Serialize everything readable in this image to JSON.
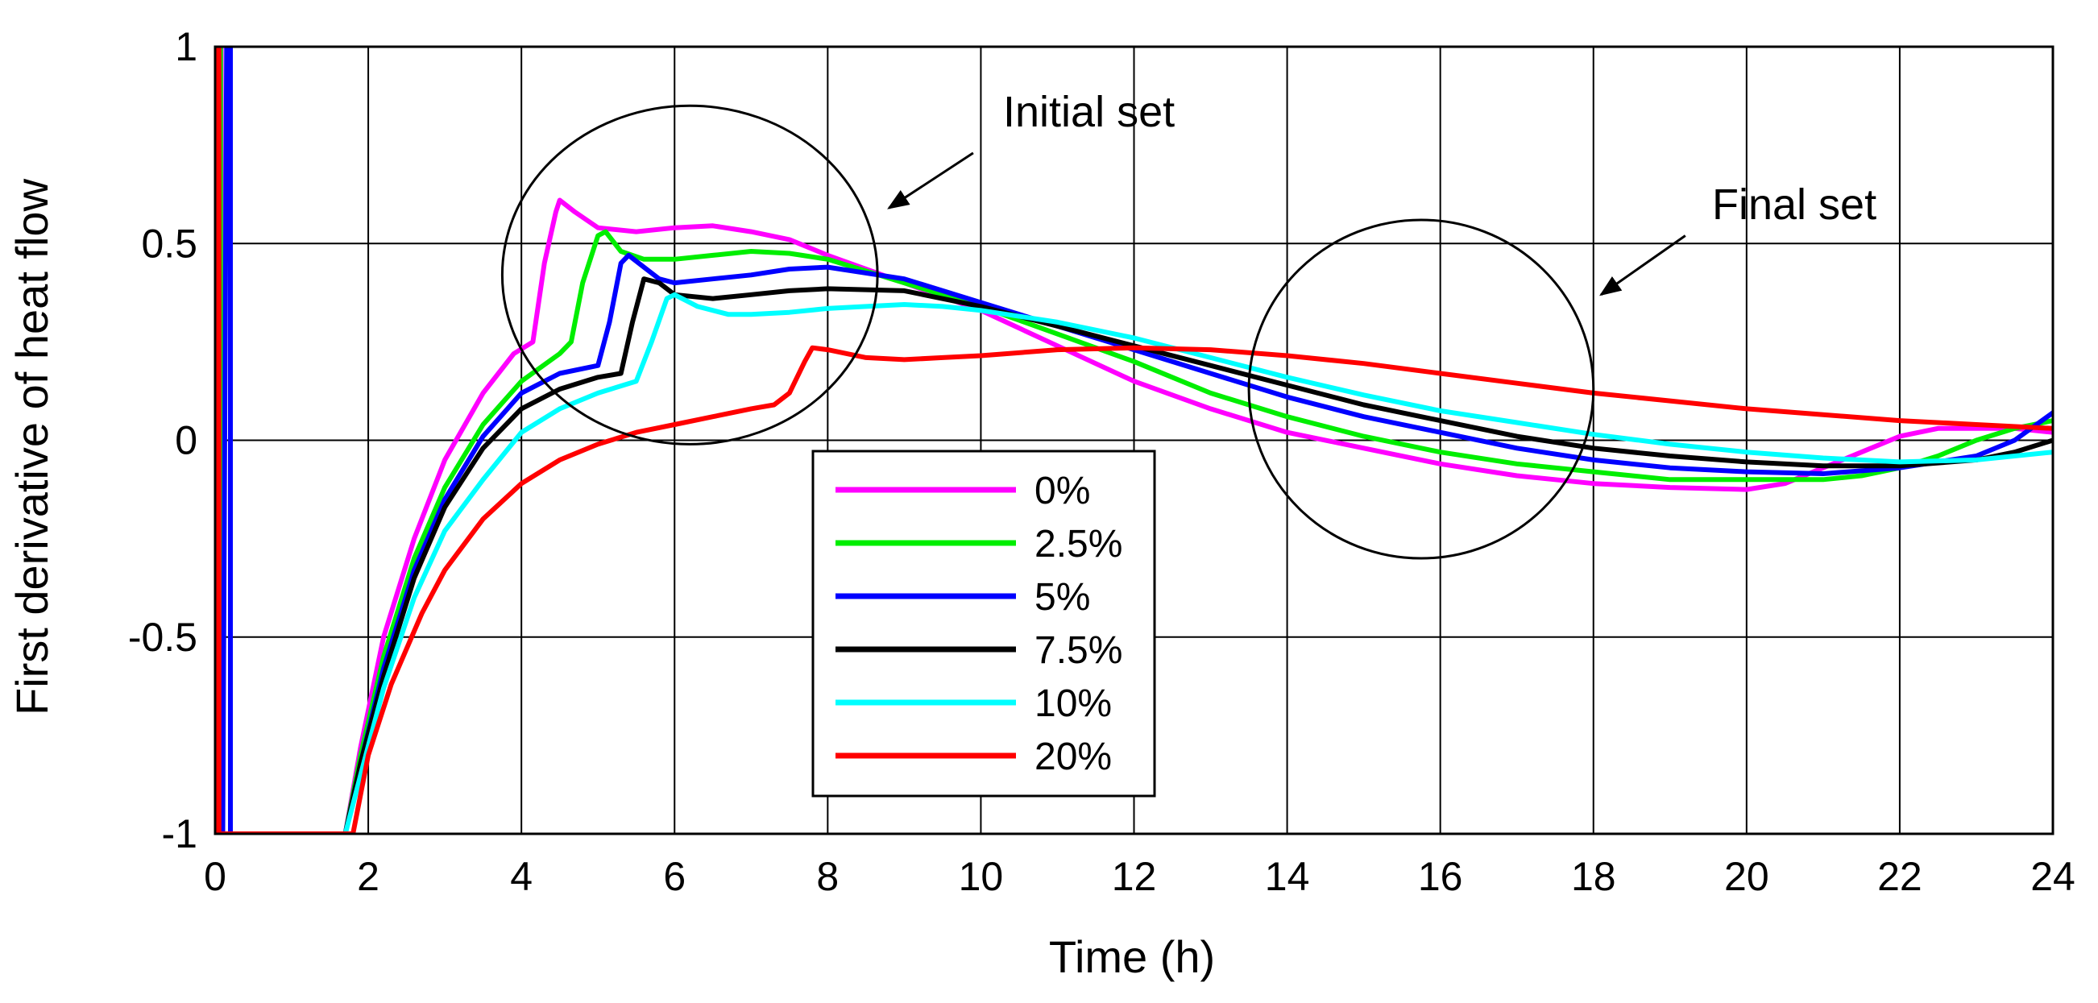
{
  "chart_data": {
    "type": "line",
    "title": "",
    "xlabel": "Time (h)",
    "ylabel": "First derivative of heat flow",
    "xlim": [
      0,
      24
    ],
    "ylim": [
      -1,
      1
    ],
    "x_ticks": [
      0,
      2,
      4,
      6,
      8,
      10,
      12,
      14,
      16,
      18,
      20,
      22,
      24
    ],
    "y_ticks": [
      -1,
      -0.5,
      0,
      0.5,
      1
    ],
    "x_tick_labels": [
      "0",
      "2",
      "4",
      "6",
      "8",
      "10",
      "12",
      "14",
      "16",
      "18",
      "20",
      "22",
      "24"
    ],
    "y_tick_labels": [
      "-1",
      "-0.5",
      "0",
      "0.5",
      "1"
    ],
    "grid": true,
    "legend_position": "bottom-center",
    "series": [
      {
        "name": "0%",
        "color": "#ff00ff",
        "points": [
          [
            0.0,
            -1
          ],
          [
            0.0,
            1
          ],
          [
            0.08,
            1
          ],
          [
            0.08,
            -1
          ],
          [
            1.7,
            -1
          ],
          [
            1.9,
            -0.78
          ],
          [
            2.2,
            -0.5
          ],
          [
            2.6,
            -0.25
          ],
          [
            3.0,
            -0.05
          ],
          [
            3.5,
            0.12
          ],
          [
            3.9,
            0.22
          ],
          [
            4.15,
            0.25
          ],
          [
            4.3,
            0.45
          ],
          [
            4.45,
            0.58
          ],
          [
            4.5,
            0.61
          ],
          [
            4.7,
            0.58
          ],
          [
            5.0,
            0.54
          ],
          [
            5.5,
            0.53
          ],
          [
            6.0,
            0.54
          ],
          [
            6.5,
            0.545
          ],
          [
            7.0,
            0.53
          ],
          [
            7.5,
            0.51
          ],
          [
            8.0,
            0.47
          ],
          [
            9.0,
            0.4
          ],
          [
            10.0,
            0.33
          ],
          [
            11.0,
            0.24
          ],
          [
            12.0,
            0.15
          ],
          [
            13.0,
            0.08
          ],
          [
            14.0,
            0.02
          ],
          [
            15.0,
            -0.02
          ],
          [
            16.0,
            -0.06
          ],
          [
            17.0,
            -0.09
          ],
          [
            18.0,
            -0.11
          ],
          [
            19.0,
            -0.12
          ],
          [
            20.0,
            -0.125
          ],
          [
            20.5,
            -0.11
          ],
          [
            21.0,
            -0.07
          ],
          [
            21.5,
            -0.03
          ],
          [
            22.0,
            0.01
          ],
          [
            22.5,
            0.03
          ],
          [
            23.0,
            0.03
          ],
          [
            23.5,
            0.03
          ],
          [
            24.0,
            0.02
          ]
        ]
      },
      {
        "name": "2.5%",
        "color": "#00ee00",
        "points": [
          [
            0.0,
            -1
          ],
          [
            0.0,
            1
          ],
          [
            0.07,
            1
          ],
          [
            0.07,
            -1
          ],
          [
            1.7,
            -1
          ],
          [
            1.9,
            -0.8
          ],
          [
            2.2,
            -0.55
          ],
          [
            2.6,
            -0.3
          ],
          [
            3.0,
            -0.12
          ],
          [
            3.5,
            0.04
          ],
          [
            4.0,
            0.15
          ],
          [
            4.5,
            0.22
          ],
          [
            4.65,
            0.25
          ],
          [
            4.8,
            0.4
          ],
          [
            5.0,
            0.52
          ],
          [
            5.1,
            0.53
          ],
          [
            5.3,
            0.48
          ],
          [
            5.6,
            0.46
          ],
          [
            6.0,
            0.46
          ],
          [
            6.5,
            0.47
          ],
          [
            7.0,
            0.48
          ],
          [
            7.5,
            0.475
          ],
          [
            8.0,
            0.46
          ],
          [
            9.0,
            0.4
          ],
          [
            10.0,
            0.34
          ],
          [
            11.0,
            0.27
          ],
          [
            12.0,
            0.2
          ],
          [
            13.0,
            0.12
          ],
          [
            14.0,
            0.06
          ],
          [
            15.0,
            0.01
          ],
          [
            16.0,
            -0.03
          ],
          [
            17.0,
            -0.06
          ],
          [
            18.0,
            -0.08
          ],
          [
            19.0,
            -0.1
          ],
          [
            20.0,
            -0.1
          ],
          [
            21.0,
            -0.1
          ],
          [
            21.5,
            -0.09
          ],
          [
            22.0,
            -0.07
          ],
          [
            22.5,
            -0.04
          ],
          [
            23.0,
            0.0
          ],
          [
            23.5,
            0.03
          ],
          [
            24.0,
            0.05
          ]
        ]
      },
      {
        "name": "5%",
        "color": "#0000ff",
        "points": [
          [
            0.0,
            -1
          ],
          [
            0.1,
            -1
          ],
          [
            0.15,
            1
          ],
          [
            0.2,
            1
          ],
          [
            0.2,
            -1
          ],
          [
            1.7,
            -1
          ],
          [
            1.9,
            -0.82
          ],
          [
            2.2,
            -0.58
          ],
          [
            2.6,
            -0.33
          ],
          [
            3.0,
            -0.15
          ],
          [
            3.5,
            0.01
          ],
          [
            4.0,
            0.12
          ],
          [
            4.5,
            0.17
          ],
          [
            5.0,
            0.19
          ],
          [
            5.15,
            0.3
          ],
          [
            5.3,
            0.45
          ],
          [
            5.4,
            0.47
          ],
          [
            5.6,
            0.44
          ],
          [
            5.8,
            0.41
          ],
          [
            6.0,
            0.4
          ],
          [
            6.5,
            0.41
          ],
          [
            7.0,
            0.42
          ],
          [
            7.5,
            0.435
          ],
          [
            8.0,
            0.44
          ],
          [
            9.0,
            0.41
          ],
          [
            10.0,
            0.35
          ],
          [
            11.0,
            0.29
          ],
          [
            12.0,
            0.23
          ],
          [
            13.0,
            0.17
          ],
          [
            14.0,
            0.11
          ],
          [
            15.0,
            0.06
          ],
          [
            16.0,
            0.02
          ],
          [
            17.0,
            -0.02
          ],
          [
            18.0,
            -0.05
          ],
          [
            19.0,
            -0.07
          ],
          [
            20.0,
            -0.08
          ],
          [
            21.0,
            -0.085
          ],
          [
            22.0,
            -0.07
          ],
          [
            23.0,
            -0.04
          ],
          [
            23.5,
            0.0
          ],
          [
            24.0,
            0.07
          ]
        ]
      },
      {
        "name": "7.5%",
        "color": "#000000",
        "points": [
          [
            0.0,
            0.0
          ],
          [
            0.0,
            -1
          ],
          [
            0.05,
            -1
          ],
          [
            1.7,
            -1
          ],
          [
            1.9,
            -0.82
          ],
          [
            2.2,
            -0.6
          ],
          [
            2.6,
            -0.35
          ],
          [
            3.0,
            -0.17
          ],
          [
            3.5,
            -0.02
          ],
          [
            4.0,
            0.08
          ],
          [
            4.5,
            0.13
          ],
          [
            5.0,
            0.16
          ],
          [
            5.3,
            0.17
          ],
          [
            5.45,
            0.3
          ],
          [
            5.6,
            0.41
          ],
          [
            5.8,
            0.4
          ],
          [
            6.0,
            0.37
          ],
          [
            6.5,
            0.36
          ],
          [
            7.0,
            0.37
          ],
          [
            7.5,
            0.38
          ],
          [
            8.0,
            0.385
          ],
          [
            9.0,
            0.38
          ],
          [
            10.0,
            0.34
          ],
          [
            11.0,
            0.29
          ],
          [
            12.0,
            0.24
          ],
          [
            13.0,
            0.19
          ],
          [
            14.0,
            0.14
          ],
          [
            15.0,
            0.09
          ],
          [
            16.0,
            0.05
          ],
          [
            17.0,
            0.01
          ],
          [
            18.0,
            -0.02
          ],
          [
            19.0,
            -0.04
          ],
          [
            20.0,
            -0.055
          ],
          [
            21.0,
            -0.065
          ],
          [
            22.0,
            -0.065
          ],
          [
            23.0,
            -0.05
          ],
          [
            23.5,
            -0.03
          ],
          [
            24.0,
            0.0
          ]
        ]
      },
      {
        "name": "10%",
        "color": "#00ffff",
        "points": [
          [
            1.7,
            -1
          ],
          [
            1.9,
            -0.85
          ],
          [
            2.2,
            -0.63
          ],
          [
            2.6,
            -0.4
          ],
          [
            3.0,
            -0.23
          ],
          [
            3.5,
            -0.1
          ],
          [
            4.0,
            0.02
          ],
          [
            4.5,
            0.08
          ],
          [
            5.0,
            0.12
          ],
          [
            5.5,
            0.15
          ],
          [
            5.7,
            0.25
          ],
          [
            5.9,
            0.36
          ],
          [
            6.0,
            0.37
          ],
          [
            6.3,
            0.34
          ],
          [
            6.7,
            0.32
          ],
          [
            7.0,
            0.32
          ],
          [
            7.5,
            0.325
          ],
          [
            8.0,
            0.335
          ],
          [
            8.5,
            0.34
          ],
          [
            9.0,
            0.345
          ],
          [
            9.5,
            0.34
          ],
          [
            10.0,
            0.33
          ],
          [
            11.0,
            0.3
          ],
          [
            12.0,
            0.26
          ],
          [
            13.0,
            0.21
          ],
          [
            14.0,
            0.16
          ],
          [
            15.0,
            0.115
          ],
          [
            16.0,
            0.075
          ],
          [
            17.0,
            0.045
          ],
          [
            18.0,
            0.015
          ],
          [
            19.0,
            -0.01
          ],
          [
            20.0,
            -0.03
          ],
          [
            21.0,
            -0.045
          ],
          [
            22.0,
            -0.055
          ],
          [
            23.0,
            -0.05
          ],
          [
            24.0,
            -0.03
          ]
        ]
      },
      {
        "name": "20%",
        "color": "#ff0000",
        "points": [
          [
            0.0,
            -1
          ],
          [
            0.0,
            1
          ],
          [
            0.05,
            1
          ],
          [
            0.05,
            -1
          ],
          [
            1.8,
            -1
          ],
          [
            2.0,
            -0.8
          ],
          [
            2.3,
            -0.62
          ],
          [
            2.7,
            -0.44
          ],
          [
            3.0,
            -0.33
          ],
          [
            3.5,
            -0.2
          ],
          [
            4.0,
            -0.11
          ],
          [
            4.5,
            -0.05
          ],
          [
            5.0,
            -0.01
          ],
          [
            5.5,
            0.02
          ],
          [
            6.0,
            0.04
          ],
          [
            6.5,
            0.06
          ],
          [
            7.0,
            0.08
          ],
          [
            7.3,
            0.09
          ],
          [
            7.5,
            0.12
          ],
          [
            7.7,
            0.2
          ],
          [
            7.8,
            0.235
          ],
          [
            8.0,
            0.23
          ],
          [
            8.5,
            0.21
          ],
          [
            9.0,
            0.205
          ],
          [
            9.5,
            0.21
          ],
          [
            10.0,
            0.215
          ],
          [
            11.0,
            0.23
          ],
          [
            12.0,
            0.235
          ],
          [
            13.0,
            0.23
          ],
          [
            14.0,
            0.215
          ],
          [
            15.0,
            0.195
          ],
          [
            16.0,
            0.17
          ],
          [
            17.0,
            0.145
          ],
          [
            18.0,
            0.12
          ],
          [
            19.0,
            0.1
          ],
          [
            20.0,
            0.08
          ],
          [
            21.0,
            0.065
          ],
          [
            22.0,
            0.05
          ],
          [
            23.0,
            0.04
          ],
          [
            24.0,
            0.03
          ]
        ]
      }
    ],
    "annotations": [
      {
        "text": "Initial set",
        "circle_center": [
          6.2,
          0.42
        ],
        "circle_radius_x": 2.45,
        "circle_radius_y": 0.43,
        "arrow_from": [
          9.9,
          0.73
        ],
        "arrow_to": [
          8.8,
          0.59
        ]
      },
      {
        "text": "Final set",
        "circle_center": [
          15.75,
          0.13
        ],
        "circle_radius_x": 2.25,
        "circle_radius_y": 0.43,
        "arrow_from": [
          19.2,
          0.52
        ],
        "arrow_to": [
          18.1,
          0.37
        ]
      }
    ]
  }
}
